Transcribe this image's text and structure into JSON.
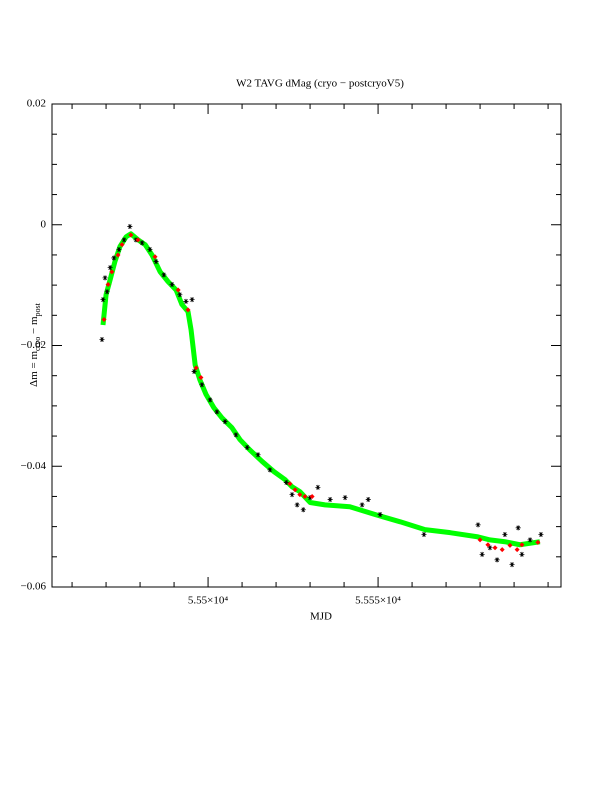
{
  "chart_data": {
    "type": "scatter",
    "title": "W2 TAVG dMag (cryo − postcryoV5)",
    "xlabel": "MJD",
    "ylabel": [
      "Δm  = m",
      "cryo",
      " − m",
      "post"
    ],
    "xlim": [
      55454.1,
      55603.8
    ],
    "ylim": [
      -0.06,
      0.02
    ],
    "xticks": [
      {
        "value": 55500,
        "label": "5.55×10⁴"
      },
      {
        "value": 55550,
        "label": "5.555×10⁴"
      }
    ],
    "xminor": [
      55460,
      55470,
      55480,
      55490,
      55510,
      55520,
      55530,
      55540,
      55560,
      55570,
      55580,
      55590,
      55600
    ],
    "yticks": [
      0.02,
      0,
      {
        "value": -0.02,
        "label": "−0.02"
      },
      {
        "value": -0.04,
        "label": "−0.04"
      },
      {
        "value": -0.06,
        "label": "−0.06"
      }
    ],
    "yminor": [
      0.015,
      0.01,
      0.005,
      -0.005,
      -0.01,
      -0.015,
      -0.025,
      -0.03,
      -0.035,
      -0.045,
      -0.05,
      -0.055
    ],
    "series": [
      {
        "color": "#00ff00",
        "marker": "line",
        "x": [
          55469.1,
          55470.0,
          55471.2,
          55472.6,
          55474.1,
          55475.9,
          55477.3,
          55479.4,
          55481.5,
          55483.5,
          55485.9,
          55488.2,
          55490.6,
          55492.3,
          55494.1,
          55495.0,
          55496.2,
          55497.6,
          55499.4,
          55501.7,
          55504.1,
          55507.0,
          55509.4,
          55512.3,
          55515.9,
          55519.4,
          55522.6,
          55524.7,
          55527.0,
          55530.0,
          55534.4,
          55541.7,
          55549.1,
          55556.5,
          55563.8,
          55571.2,
          55579.4,
          55582.9,
          55587.3,
          55591.7,
          55597.6
        ],
        "values": [
          -0.0166,
          -0.0116,
          -0.0091,
          -0.0061,
          -0.0036,
          -0.002,
          -0.0015,
          -0.0025,
          -0.0033,
          -0.005,
          -0.0078,
          -0.0094,
          -0.0108,
          -0.0132,
          -0.0144,
          -0.0174,
          -0.0232,
          -0.0257,
          -0.0281,
          -0.0303,
          -0.032,
          -0.0336,
          -0.0356,
          -0.0373,
          -0.0392,
          -0.0409,
          -0.0422,
          -0.0434,
          -0.0442,
          -0.046,
          -0.0464,
          -0.0467,
          -0.048,
          -0.0492,
          -0.0505,
          -0.051,
          -0.0517,
          -0.0522,
          -0.0525,
          -0.053,
          -0.0525
        ]
      },
      {
        "color": "#000000",
        "marker": "star",
        "x": [
          55468.8,
          55469.1,
          55469.7,
          55470.3,
          55471.2,
          55472.3,
          55473.8,
          55475.3,
          55477.0,
          55478.8,
          55480.6,
          55482.9,
          55484.7,
          55487.0,
          55489.4,
          55491.7,
          55493.5,
          55495.3,
          55495.9,
          55498.2,
          55500.6,
          55502.6,
          55505.0,
          55508.2,
          55511.5,
          55514.7,
          55518.2,
          55523.0,
          55524.7,
          55526.2,
          55528.0,
          55530.0,
          55532.3,
          55535.9,
          55540.3,
          55545.3,
          55547.1,
          55550.6,
          55563.5,
          55579.4,
          55580.6,
          55582.9,
          55585.0,
          55587.3,
          55589.4,
          55591.2,
          55592.3,
          55594.7,
          55597.9
        ],
        "values": [
          -0.019,
          -0.0124,
          -0.0088,
          -0.0111,
          -0.0071,
          -0.0055,
          -0.0041,
          -0.0025,
          -0.0003,
          -0.0025,
          -0.003,
          -0.0041,
          -0.0061,
          -0.0083,
          -0.0099,
          -0.0116,
          -0.0127,
          -0.0124,
          -0.0243,
          -0.0265,
          -0.029,
          -0.031,
          -0.0326,
          -0.0348,
          -0.0369,
          -0.0381,
          -0.0406,
          -0.0427,
          -0.0447,
          -0.0464,
          -0.0472,
          -0.0452,
          -0.0435,
          -0.0455,
          -0.0452,
          -0.0464,
          -0.0455,
          -0.048,
          -0.0513,
          -0.0497,
          -0.0546,
          -0.0535,
          -0.0555,
          -0.0513,
          -0.0563,
          -0.0502,
          -0.0546,
          -0.0522,
          -0.0513
        ]
      },
      {
        "color": "#ff0000",
        "marker": "diamond",
        "x": [
          55469.4,
          55470.6,
          55471.7,
          55473.5,
          55474.7,
          55477.3,
          55479.4,
          55484.4,
          55491.2,
          55494.1,
          55496.5,
          55497.9,
          55524.1,
          55525.6,
          55527.0,
          55528.5,
          55530.6,
          55580.0,
          55582.3,
          55584.4,
          55586.5,
          55588.8,
          55590.9,
          55592.3,
          55597.0
        ],
        "values": [
          -0.0157,
          -0.0099,
          -0.0078,
          -0.005,
          -0.0033,
          -0.0017,
          -0.0025,
          -0.0053,
          -0.0108,
          -0.0141,
          -0.0237,
          -0.0253,
          -0.0429,
          -0.0439,
          -0.0447,
          -0.045,
          -0.045,
          -0.0522,
          -0.053,
          -0.0535,
          -0.0538,
          -0.0531,
          -0.0538,
          -0.053,
          -0.0526
        ]
      }
    ]
  }
}
